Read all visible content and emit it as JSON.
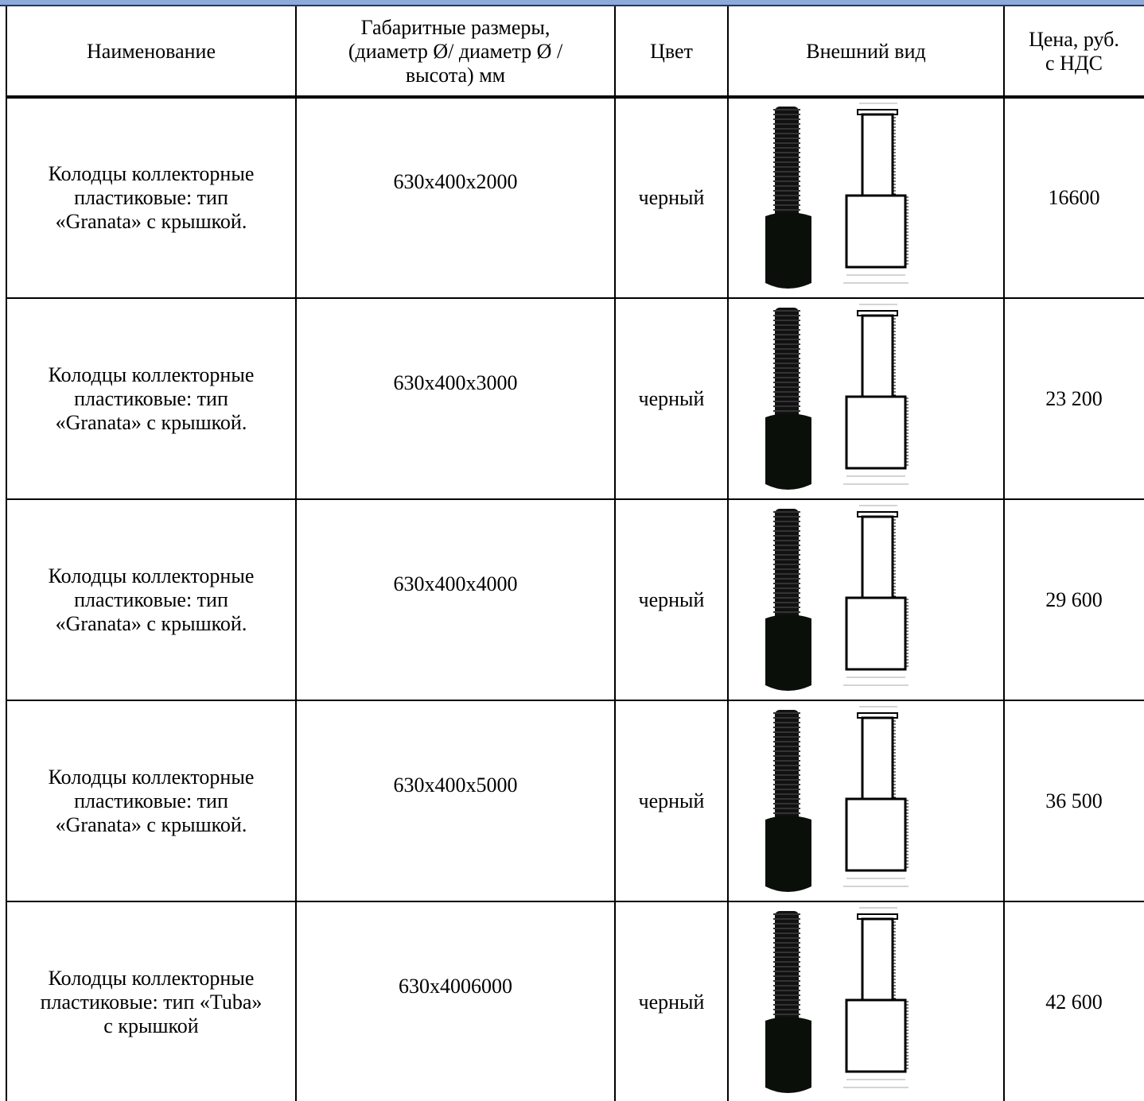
{
  "table": {
    "header": [
      "Наименование",
      "Габаритные размеры,\n(диаметр Ø/ диаметр Ø /\nвысота) мм",
      "Цвет",
      "Внешний вид",
      "Цена, руб.\nс НДС"
    ],
    "rows": [
      [
        "Колодцы коллекторные\nпластиковые: тип\n«Granata» с крышкой.",
        "630x400x2000",
        "черный",
        "16600"
      ],
      [
        "Колодцы коллекторные\nпластиковые: тип\n«Granata» с крышкой.",
        "630x400x3000",
        "черный",
        "23 200"
      ],
      [
        "Колодцы коллекторные\nпластиковые: тип\n«Granata» с крышкой.",
        "630x400x4000",
        "черный",
        "29 600"
      ],
      [
        "Колодцы коллекторные\nпластиковые: тип\n«Granata» с крышкой.",
        "630x400x5000",
        "черный",
        "36 500"
      ],
      [
        "Колодцы коллекторные\nпластиковые: тип «Tuba»\nс крышкой",
        "630x4006000",
        "черный",
        "42 600"
      ]
    ]
  }
}
